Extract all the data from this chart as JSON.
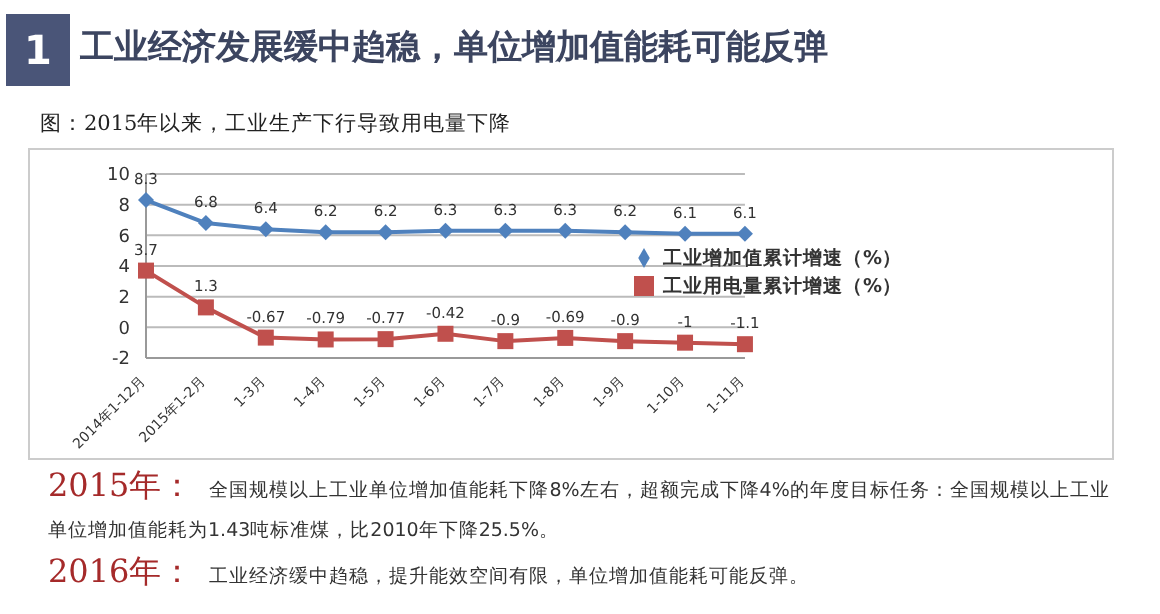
{
  "chart_data": {
    "type": "line",
    "title": "工业经济发展缓中趋稳，单位增加值能耗可能反弹",
    "subtitle": "图：2015年以来，工业生产下行导致用电量下降",
    "annotations": [
      "1",
      "2015年：",
      "全国规模以上工业单位增加值能耗下降8%左右，超额完成下降4%的年度目标任务：全国规模以上工业单位增加值能耗为1.43吨标准煤，比2010年下降25.5%。",
      "2016年：",
      "工业经济缓中趋稳，提升能效空间有限，单位增加值能耗可能反弹。"
    ],
    "categories": [
      "2014年1-12月",
      "2015年1-2月",
      "1-3月",
      "1-4月",
      "1-5月",
      "1-6月",
      "1-7月",
      "1-8月",
      "1-9月",
      "1-10月",
      "1-11月"
    ],
    "series": [
      {
        "name": "工业增加值累计增速（%）",
        "color": "#4f81bd",
        "marker": "diamond",
        "values": [
          8.3,
          6.8,
          6.4,
          6.2,
          6.2,
          6.3,
          6.3,
          6.3,
          6.2,
          6.1,
          6.1
        ]
      },
      {
        "name": "工业用电量累计增速（%）",
        "color": "#c0504d",
        "marker": "square",
        "values": [
          3.7,
          1.3,
          -0.67,
          -0.79,
          -0.77,
          -0.42,
          -0.9,
          -0.69,
          -0.9,
          -1,
          -1.1
        ]
      }
    ],
    "ylim": [
      -2,
      10
    ],
    "yticks": [
      -2,
      0,
      2,
      4,
      6,
      8,
      10
    ],
    "grid": "y",
    "legend": "right",
    "data_labels": true,
    "line_style": "solid"
  }
}
